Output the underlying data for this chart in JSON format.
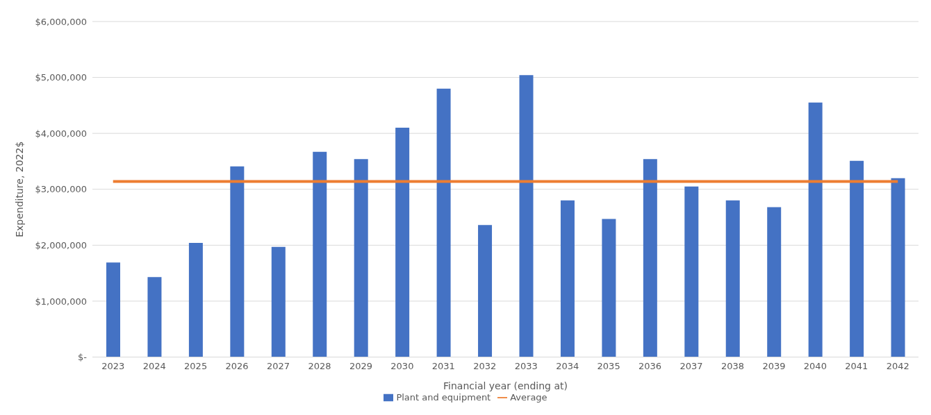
{
  "chart_data": {
    "type": "bar",
    "xlabel": "Financial year (ending at)",
    "ylabel": "Expenditure, 2022$",
    "categories": [
      "2023",
      "2024",
      "2025",
      "2026",
      "2027",
      "2028",
      "2029",
      "2030",
      "2031",
      "2032",
      "2033",
      "2034",
      "2035",
      "2036",
      "2037",
      "2038",
      "2039",
      "2040",
      "2041",
      "2042"
    ],
    "series": [
      {
        "name": "Plant and equipment",
        "color": "#4472c4",
        "values": [
          1690000,
          1430000,
          2040000,
          3410000,
          1970000,
          3670000,
          3540000,
          4100000,
          4800000,
          2360000,
          5040000,
          2800000,
          2470000,
          3540000,
          3050000,
          2800000,
          2680000,
          4550000,
          3510000,
          3200000
        ]
      },
      {
        "name": "Average",
        "type": "line",
        "color": "#ed7d31",
        "values": [
          3140000,
          3140000,
          3140000,
          3140000,
          3140000,
          3140000,
          3140000,
          3140000,
          3140000,
          3140000,
          3140000,
          3140000,
          3140000,
          3140000,
          3140000,
          3140000,
          3140000,
          3140000,
          3140000,
          3140000
        ]
      }
    ],
    "ylim": [
      0,
      6000000
    ],
    "yticks": [
      {
        "value": 0,
        "label": "$-"
      },
      {
        "value": 1000000,
        "label": "$1,000,000"
      },
      {
        "value": 2000000,
        "label": "$2,000,000"
      },
      {
        "value": 3000000,
        "label": "$3,000,000"
      },
      {
        "value": 4000000,
        "label": "$4,000,000"
      },
      {
        "value": 5000000,
        "label": "$5,000,000"
      },
      {
        "value": 6000000,
        "label": "$6,000,000"
      }
    ],
    "grid": "y",
    "legend": "bottom",
    "marker": "none"
  }
}
